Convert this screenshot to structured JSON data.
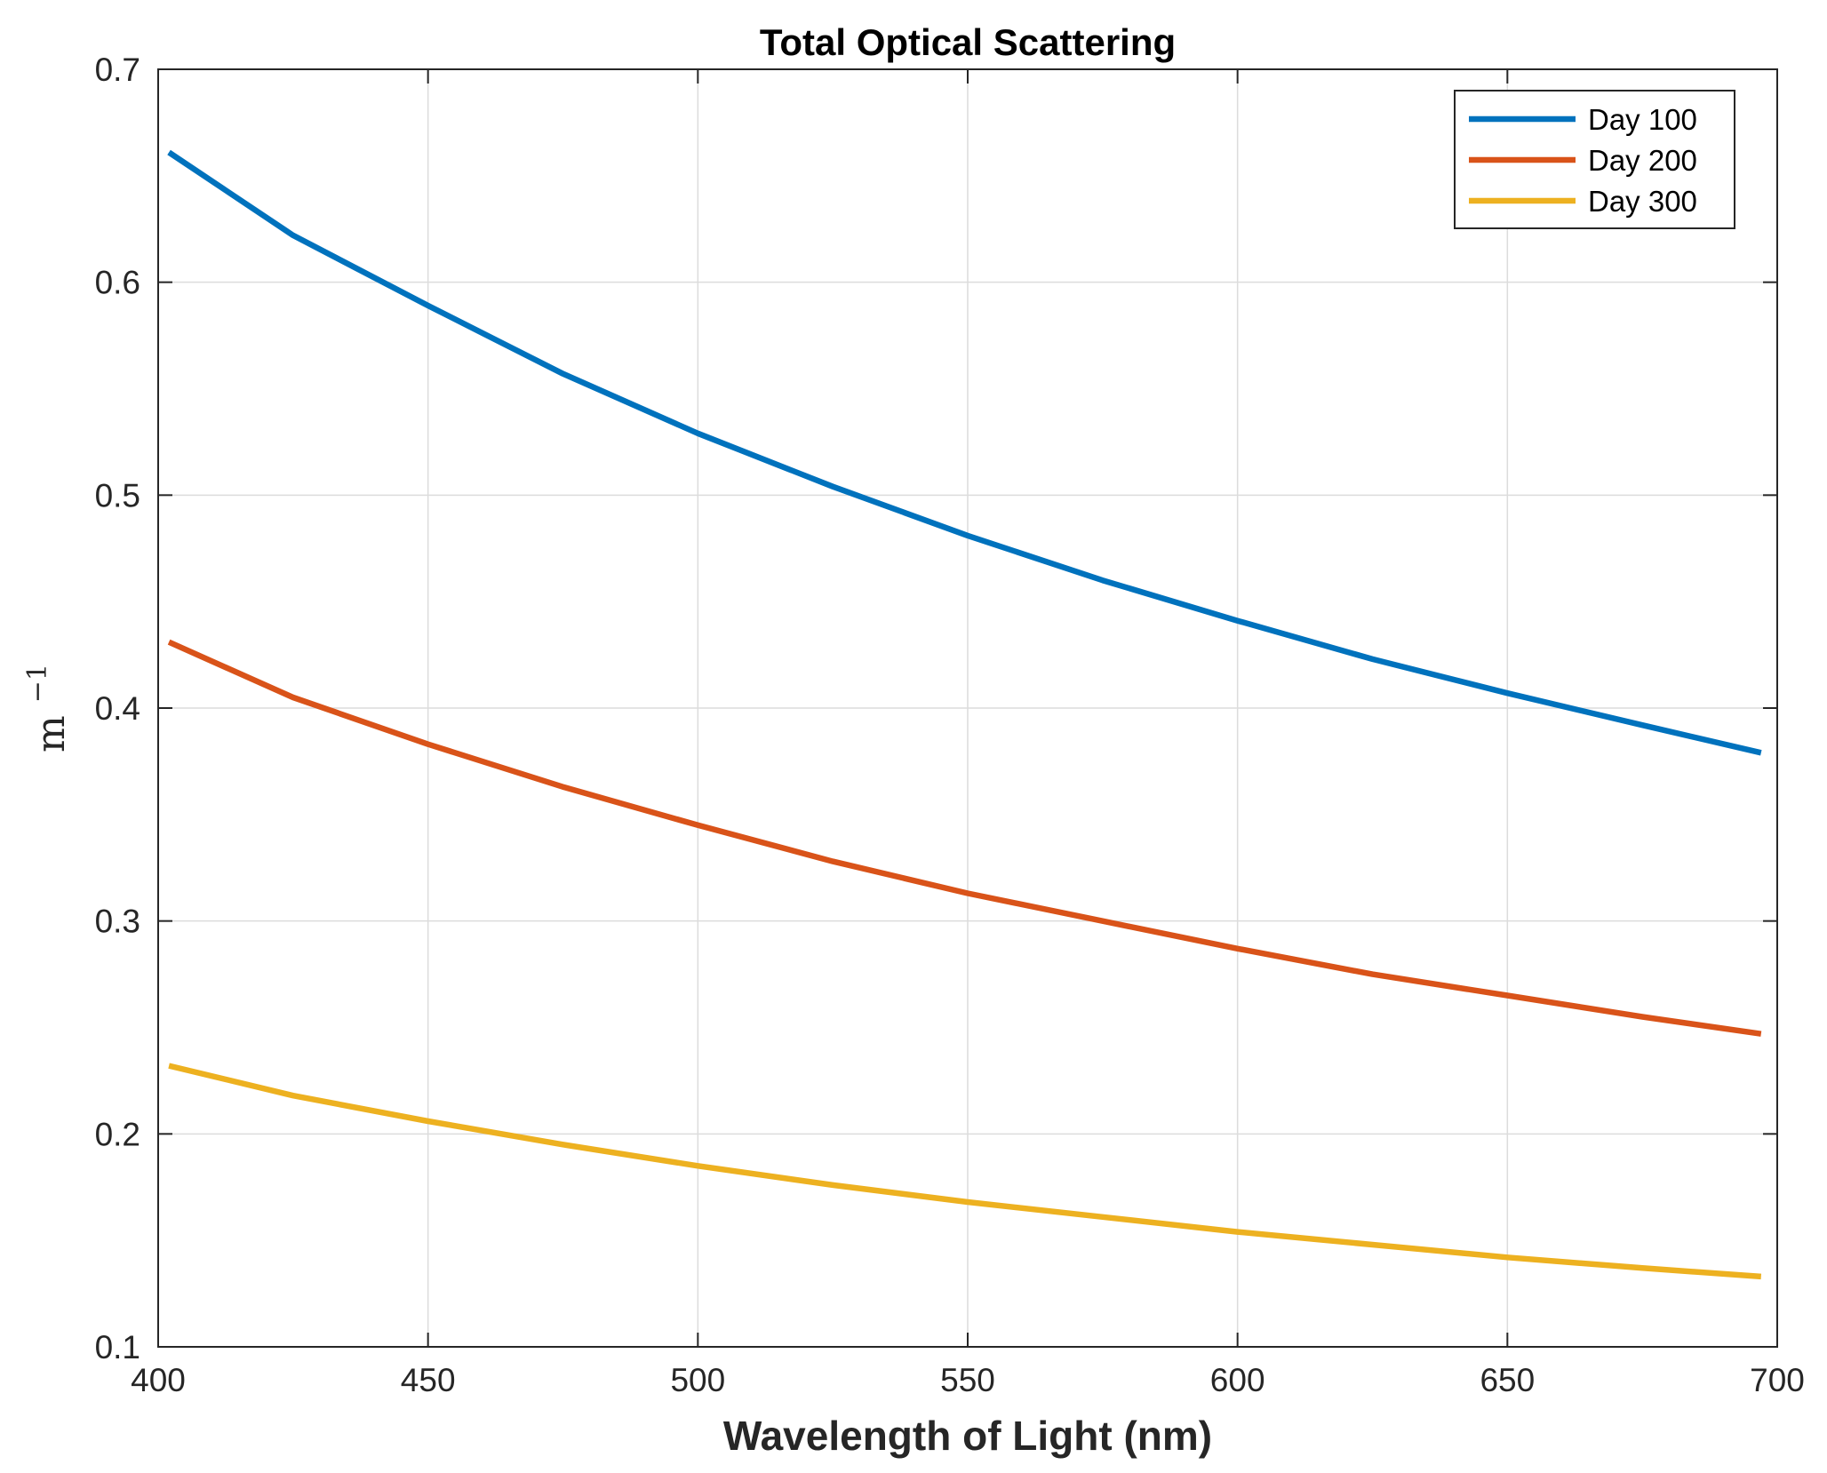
{
  "chart_data": {
    "type": "line",
    "title": "Total Optical Scattering",
    "xlabel": "Wavelength of Light (nm)",
    "ylabel": {
      "base": "m",
      "exponent": "−1"
    },
    "xlim": [
      400,
      700
    ],
    "ylim": [
      0.1,
      0.7
    ],
    "x_ticks": [
      400,
      450,
      500,
      550,
      600,
      650,
      700
    ],
    "y_ticks": [
      0.1,
      0.2,
      0.3,
      0.4,
      0.5,
      0.6,
      0.7
    ],
    "x_tick_labels": [
      "400",
      "450",
      "500",
      "550",
      "600",
      "650",
      "700"
    ],
    "y_tick_labels": [
      "0.1",
      "0.2",
      "0.3",
      "0.4",
      "0.5",
      "0.6",
      "0.7"
    ],
    "grid": true,
    "legend_position": "top-right",
    "x": [
      402,
      425,
      450,
      475,
      500,
      525,
      550,
      575,
      600,
      625,
      650,
      675,
      697
    ],
    "series": [
      {
        "name": "Day 100",
        "color": "#0072BD",
        "values": [
          0.661,
          0.622,
          0.589,
          0.557,
          0.529,
          0.504,
          0.481,
          0.46,
          0.441,
          0.423,
          0.407,
          0.392,
          0.379
        ]
      },
      {
        "name": "Day 200",
        "color": "#D95319",
        "values": [
          0.431,
          0.405,
          0.383,
          0.363,
          0.345,
          0.328,
          0.313,
          0.3,
          0.287,
          0.275,
          0.265,
          0.255,
          0.247
        ]
      },
      {
        "name": "Day 300",
        "color": "#EDB120",
        "values": [
          0.232,
          0.218,
          0.206,
          0.195,
          0.185,
          0.176,
          0.168,
          0.161,
          0.154,
          0.148,
          0.142,
          0.137,
          0.133
        ]
      }
    ]
  }
}
